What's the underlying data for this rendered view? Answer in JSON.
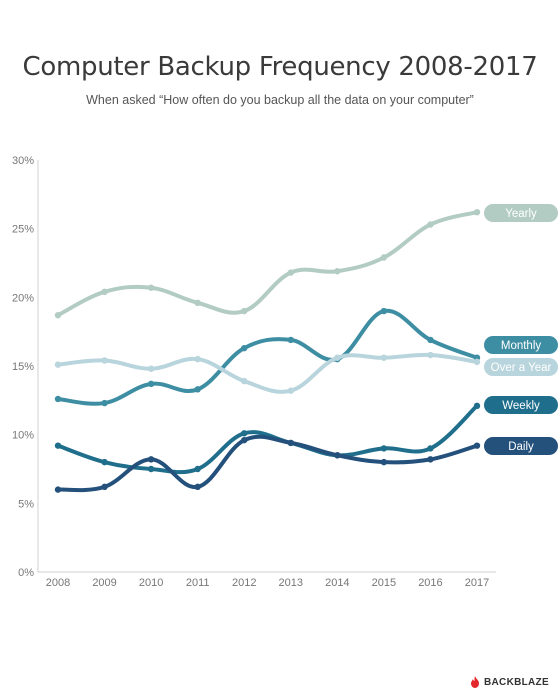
{
  "title": "Computer Backup Frequency 2008-2017",
  "subtitle": "When asked “How often do you backup all the data on your computer”",
  "brand": {
    "name": "BACKBLAZE",
    "color": "#e2282a"
  },
  "chart_data": {
    "type": "line",
    "title": "Computer Backup Frequency 2008-2017",
    "subtitle": "When asked “How often do you backup all the data on your computer”",
    "xlabel": "",
    "ylabel": "",
    "categories": [
      "2008",
      "2009",
      "2010",
      "2011",
      "2012",
      "2013",
      "2014",
      "2015",
      "2016",
      "2017"
    ],
    "y_ticks": [
      "0%",
      "5%",
      "10%",
      "15%",
      "20%",
      "25%",
      "30%"
    ],
    "ylim": [
      0,
      30
    ],
    "grid": false,
    "legend": "right end labels",
    "series": [
      {
        "name": "Yearly",
        "color": "#b2ccc4",
        "values": [
          18.7,
          20.4,
          20.7,
          19.6,
          19.0,
          21.8,
          21.9,
          22.9,
          25.3,
          26.2
        ]
      },
      {
        "name": "Monthly",
        "color": "#3e8ea3",
        "values": [
          12.6,
          12.3,
          13.7,
          13.3,
          16.3,
          16.9,
          15.5,
          19.0,
          16.9,
          15.6
        ]
      },
      {
        "name": "Over a Year",
        "color": "#b8d4dc",
        "values": [
          15.1,
          15.4,
          14.8,
          15.5,
          13.9,
          13.2,
          15.6,
          15.6,
          15.8,
          15.3
        ]
      },
      {
        "name": "Weekly",
        "color": "#1f6e8c",
        "values": [
          9.2,
          8.0,
          7.5,
          7.5,
          10.1,
          9.4,
          8.5,
          9.0,
          9.0,
          12.1
        ]
      },
      {
        "name": "Daily",
        "color": "#24507c",
        "values": [
          6.0,
          6.2,
          8.2,
          6.2,
          9.6,
          9.4,
          8.5,
          8.0,
          8.2,
          9.2
        ]
      }
    ]
  }
}
